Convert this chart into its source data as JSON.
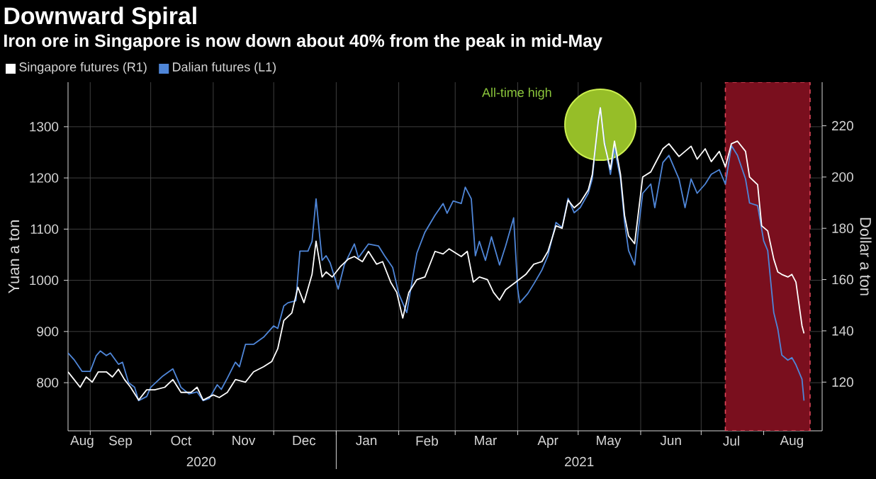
{
  "chart_data": {
    "type": "line",
    "title": "Downward Spiral",
    "subtitle": "Iron ore in Singapore is now down about 40% from the peak in mid-May",
    "ylabel": "Yuan a ton",
    "y2label": "Dollar a ton",
    "xlim": [
      "2020-08-21",
      "2021-08-30"
    ],
    "ylim": [
      706,
      1387
    ],
    "y2lim": [
      101,
      237
    ],
    "yticks": [
      800,
      900,
      1000,
      1100,
      1200,
      1300
    ],
    "y2ticks": [
      120,
      140,
      160,
      180,
      200,
      220
    ],
    "xticks": [
      {
        "value": "2020-08-28",
        "label": "Aug"
      },
      {
        "value": "2020-09-01",
        "label": null
      },
      {
        "value": "2020-09-16",
        "label": "Sep"
      },
      {
        "value": "2020-10-01",
        "label": null
      },
      {
        "value": "2020-10-16",
        "label": "Oct"
      },
      {
        "value": "2020-11-01",
        "label": null
      },
      {
        "value": "2020-11-16",
        "label": "Nov"
      },
      {
        "value": "2020-12-01",
        "label": null
      },
      {
        "value": "2020-12-16",
        "label": "Dec"
      },
      {
        "value": "2021-01-01",
        "label": null
      },
      {
        "value": "2021-01-16",
        "label": "Jan"
      },
      {
        "value": "2021-02-01",
        "label": null
      },
      {
        "value": "2021-02-15",
        "label": "Feb"
      },
      {
        "value": "2021-03-01",
        "label": null
      },
      {
        "value": "2021-03-16",
        "label": "Mar"
      },
      {
        "value": "2021-04-01",
        "label": null
      },
      {
        "value": "2021-04-16",
        "label": "Apr"
      },
      {
        "value": "2021-05-01",
        "label": null
      },
      {
        "value": "2021-05-16",
        "label": "May"
      },
      {
        "value": "2021-06-01",
        "label": null
      },
      {
        "value": "2021-06-16",
        "label": "Jun"
      },
      {
        "value": "2021-07-01",
        "label": null
      },
      {
        "value": "2021-07-16",
        "label": "Jul"
      },
      {
        "value": "2021-08-01",
        "label": null
      },
      {
        "value": "2021-08-15",
        "label": "Aug"
      }
    ],
    "grid": true,
    "legend": "top left",
    "marker": "none",
    "line_style": "solid",
    "series": [
      {
        "name": "Singapore futures (R1)",
        "color": "#ffffff",
        "axis": "y2",
        "x": [
          "2020-08-21",
          "2020-08-24",
          "2020-08-27",
          "2020-08-30",
          "2020-09-02",
          "2020-09-05",
          "2020-09-09",
          "2020-09-12",
          "2020-09-15",
          "2020-09-18",
          "2020-09-21",
          "2020-09-25",
          "2020-09-29",
          "2020-10-03",
          "2020-10-08",
          "2020-10-12",
          "2020-10-16",
          "2020-10-21",
          "2020-10-24",
          "2020-10-27",
          "2020-11-01",
          "2020-11-04",
          "2020-11-08",
          "2020-11-12",
          "2020-11-17",
          "2020-11-21",
          "2020-11-26",
          "2020-11-30",
          "2020-12-03",
          "2020-12-06",
          "2020-12-10",
          "2020-12-13",
          "2020-12-16",
          "2020-12-20",
          "2020-12-22",
          "2020-12-25",
          "2020-12-27",
          "2020-12-30",
          "2021-01-03",
          "2021-01-07",
          "2021-01-10",
          "2021-01-14",
          "2021-01-17",
          "2021-01-21",
          "2021-01-24",
          "2021-01-28",
          "2021-01-31",
          "2021-02-03",
          "2021-02-06",
          "2021-02-10",
          "2021-02-14",
          "2021-02-19",
          "2021-02-23",
          "2021-02-26",
          "2021-02-28",
          "2021-03-04",
          "2021-03-07",
          "2021-03-10",
          "2021-03-13",
          "2021-03-17",
          "2021-03-20",
          "2021-03-23",
          "2021-03-26",
          "2021-03-31",
          "2021-04-05",
          "2021-04-09",
          "2021-04-13",
          "2021-04-16",
          "2021-04-20",
          "2021-04-23",
          "2021-04-26",
          "2021-04-29",
          "2021-05-02",
          "2021-05-06",
          "2021-05-08",
          "2021-05-11",
          "2021-05-12",
          "2021-05-14",
          "2021-05-17",
          "2021-05-19",
          "2021-05-22",
          "2021-05-24",
          "2021-05-26",
          "2021-05-29",
          "2021-05-31",
          "2021-06-02",
          "2021-06-06",
          "2021-06-08",
          "2021-06-12",
          "2021-06-15",
          "2021-06-20",
          "2021-06-23",
          "2021-06-26",
          "2021-06-29",
          "2021-07-03",
          "2021-07-06",
          "2021-07-10",
          "2021-07-13",
          "2021-07-16",
          "2021-07-19",
          "2021-07-23",
          "2021-07-25",
          "2021-07-29",
          "2021-07-31",
          "2021-08-03",
          "2021-08-06",
          "2021-08-08",
          "2021-08-10",
          "2021-08-13",
          "2021-08-15",
          "2021-08-17",
          "2021-08-20",
          "2021-08-21"
        ],
        "values": [
          124,
          121,
          118,
          122,
          120,
          124,
          124,
          122,
          125,
          121,
          118,
          113,
          117,
          117,
          118,
          121,
          116,
          116,
          118,
          113,
          115,
          114,
          116,
          121,
          120,
          124,
          126,
          128,
          133,
          144,
          147,
          157,
          151,
          162,
          175,
          161,
          163,
          161,
          165,
          168,
          169,
          167,
          171,
          166,
          167,
          159,
          155,
          145,
          155,
          160,
          161,
          171,
          170,
          172,
          171,
          169,
          171,
          159,
          161,
          160,
          155,
          152,
          156,
          159,
          162,
          166,
          167,
          171,
          181,
          180,
          191,
          188,
          190,
          195,
          201,
          222,
          227,
          213,
          203,
          214,
          201,
          185,
          177,
          174,
          187,
          200,
          202,
          205,
          211,
          213,
          208,
          210,
          212,
          207,
          211,
          206,
          210,
          204,
          213,
          214,
          210,
          200,
          197,
          181,
          179,
          168,
          163,
          162,
          161,
          162,
          159,
          142,
          139
        ]
      },
      {
        "name": "Dalian futures (L1)",
        "color": "#4f86d8",
        "x": [
          "2020-08-21",
          "2020-08-24",
          "2020-08-28",
          "2020-09-01",
          "2020-09-04",
          "2020-09-06",
          "2020-09-09",
          "2020-09-11",
          "2020-09-15",
          "2020-09-17",
          "2020-09-20",
          "2020-09-23",
          "2020-09-25",
          "2020-09-29",
          "2020-10-01",
          "2020-10-07",
          "2020-10-12",
          "2020-10-16",
          "2020-10-20",
          "2020-10-24",
          "2020-10-27",
          "2020-10-30",
          "2020-11-03",
          "2020-11-05",
          "2020-11-08",
          "2020-11-12",
          "2020-11-14",
          "2020-11-17",
          "2020-11-21",
          "2020-11-26",
          "2020-12-01",
          "2020-12-03",
          "2020-12-06",
          "2020-12-08",
          "2020-12-12",
          "2020-12-14",
          "2020-12-18",
          "2020-12-20",
          "2020-12-22",
          "2020-12-25",
          "2020-12-27",
          "2020-12-29",
          "2021-01-02",
          "2021-01-05",
          "2021-01-10",
          "2021-01-12",
          "2021-01-17",
          "2021-01-22",
          "2021-01-25",
          "2021-01-29",
          "2021-02-01",
          "2021-02-05",
          "2021-02-10",
          "2021-02-14",
          "2021-02-19",
          "2021-02-23",
          "2021-02-25",
          "2021-02-28",
          "2021-03-04",
          "2021-03-06",
          "2021-03-09",
          "2021-03-11",
          "2021-03-13",
          "2021-03-16",
          "2021-03-19",
          "2021-03-23",
          "2021-03-26",
          "2021-03-30",
          "2021-04-01",
          "2021-04-02",
          "2021-04-06",
          "2021-04-09",
          "2021-04-13",
          "2021-04-16",
          "2021-04-20",
          "2021-04-23",
          "2021-04-26",
          "2021-04-29",
          "2021-05-02",
          "2021-05-06",
          "2021-05-08",
          "2021-05-11",
          "2021-05-12",
          "2021-05-14",
          "2021-05-17",
          "2021-05-19",
          "2021-05-22",
          "2021-05-24",
          "2021-05-26",
          "2021-05-29",
          "2021-05-31",
          "2021-06-02",
          "2021-06-06",
          "2021-06-08",
          "2021-06-12",
          "2021-06-15",
          "2021-06-20",
          "2021-06-23",
          "2021-06-26",
          "2021-06-29",
          "2021-07-03",
          "2021-07-06",
          "2021-07-10",
          "2021-07-13",
          "2021-07-16",
          "2021-07-19",
          "2021-07-23",
          "2021-07-25",
          "2021-07-29",
          "2021-08-01",
          "2021-08-03",
          "2021-08-06",
          "2021-08-08",
          "2021-08-10",
          "2021-08-13",
          "2021-08-15",
          "2021-08-17",
          "2021-08-20",
          "2021-08-21"
        ],
        "values": [
          858,
          845,
          822,
          822,
          853,
          862,
          853,
          858,
          836,
          840,
          800,
          791,
          765,
          773,
          791,
          813,
          827,
          791,
          778,
          782,
          765,
          769,
          796,
          787,
          809,
          840,
          831,
          875,
          875,
          889,
          911,
          906,
          950,
          956,
          960,
          1057,
          1057,
          1076,
          1159,
          1039,
          1048,
          1034,
          983,
          1030,
          1071,
          1044,
          1071,
          1067,
          1048,
          1025,
          974,
          937,
          1053,
          1094,
          1127,
          1150,
          1131,
          1155,
          1150,
          1182,
          1159,
          1048,
          1076,
          1039,
          1085,
          1030,
          1067,
          1122,
          983,
          956,
          974,
          993,
          1020,
          1048,
          1113,
          1103,
          1160,
          1132,
          1142,
          1170,
          1198,
          1314,
          1337,
          1272,
          1207,
          1258,
          1198,
          1114,
          1058,
          1030,
          1105,
          1170,
          1188,
          1142,
          1230,
          1244,
          1198,
          1142,
          1198,
          1170,
          1188,
          1207,
          1216,
          1188,
          1263,
          1244,
          1198,
          1151,
          1146,
          1077,
          1058,
          937,
          905,
          854,
          844,
          849,
          835,
          807,
          765
        ]
      }
    ],
    "bands": [
      {
        "axis": "x",
        "from": "2021-07-13",
        "to": "2021-08-24",
        "color": "#7a0f1e"
      }
    ],
    "annotations": [
      "All-time high",
      "2020",
      "2021"
    ]
  }
}
